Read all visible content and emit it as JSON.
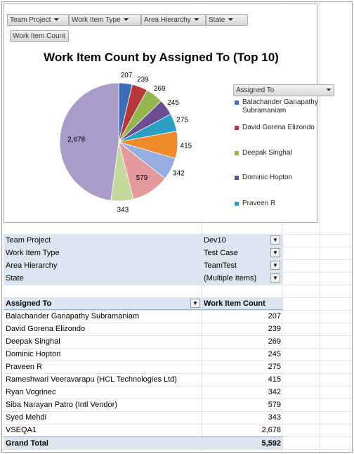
{
  "chart": {
    "field_buttons": [
      "Team Project",
      "Work Item Type",
      "Area Hierarchy",
      "State"
    ],
    "value_button": "Work Item Count",
    "legend_title": "Assigned To",
    "legend_items": [
      {
        "label": "Balachander Ganapathy Subramaniam",
        "color": "#3a6fb5"
      },
      {
        "label": "David Gorena Elizondo",
        "color": "#b8383a"
      },
      {
        "label": "Deepak Singhal",
        "color": "#92b64a"
      },
      {
        "label": "Dominic Hopton",
        "color": "#6a4d92"
      },
      {
        "label": "Praveen R",
        "color": "#2c9fc4"
      }
    ]
  },
  "chart_data": {
    "type": "pie",
    "title": "Work Item Count by Assigned To (Top 10)",
    "categories": [
      "Balachander Ganapathy Subramaniam",
      "David Gorena Elizondo",
      "Deepak Singhal",
      "Dominic Hopton",
      "Praveen R",
      "Rameshwari Veeravarapu (HCL Technologies Ltd)",
      "Ryan Vogrinec",
      "Siba Narayan Patro (Intl Vendor)",
      "Syed Mehdi",
      "VSEQA1"
    ],
    "values": [
      207,
      239,
      269,
      245,
      275,
      415,
      342,
      579,
      343,
      2678
    ],
    "value_labels": [
      "207",
      "239",
      "269",
      "245",
      "275",
      "415",
      "342",
      "579",
      "343",
      "2,678"
    ],
    "colors": [
      "#3a6fb5",
      "#b8383a",
      "#92b64a",
      "#6a4d92",
      "#2c9fc4",
      "#ee8a2a",
      "#94aee0",
      "#e49a9c",
      "#c3d99b",
      "#a99cc9"
    ],
    "legend": "right"
  },
  "filters": [
    {
      "label": "Team Project",
      "value": "Dev10"
    },
    {
      "label": "Work Item Type",
      "value": "Test Case"
    },
    {
      "label": "Area Hierarchy",
      "value": "TeamTest"
    },
    {
      "label": "State",
      "value": "(Multiple Items)"
    }
  ],
  "table": {
    "col_row_label": "Assigned To",
    "col_value": "Work Item Count",
    "rows": [
      {
        "name": "Balachander Ganapathy Subramaniam",
        "count": "207"
      },
      {
        "name": "David Gorena Elizondo",
        "count": "239"
      },
      {
        "name": "Deepak Singhal",
        "count": "269"
      },
      {
        "name": "Dominic Hopton",
        "count": "245"
      },
      {
        "name": "Praveen R",
        "count": "275"
      },
      {
        "name": "Rameshwari Veeravarapu (HCL Technologies Ltd)",
        "count": "415"
      },
      {
        "name": "Ryan Vogrinec",
        "count": "342"
      },
      {
        "name": "Siba Narayan Patro (Intl Vendor)",
        "count": "579"
      },
      {
        "name": "Syed Mehdi",
        "count": "343"
      },
      {
        "name": "VSEQA1",
        "count": "2,678"
      }
    ],
    "total_label": "Grand Total",
    "total_value": "5,592"
  }
}
